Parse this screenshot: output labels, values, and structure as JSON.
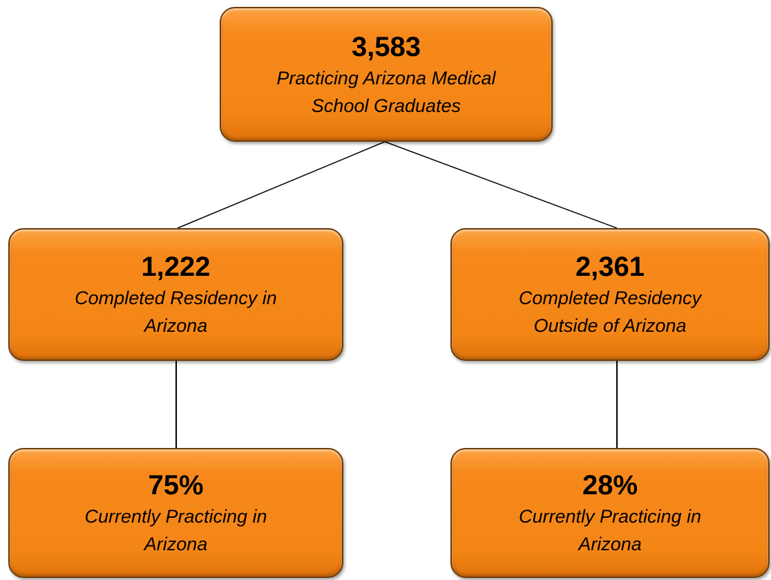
{
  "nodes": [
    {
      "value": "3,583",
      "label": [
        "Practicing Arizona Medical",
        "School Graduates"
      ]
    },
    {
      "value": "1,222",
      "label": [
        "Completed Residency in",
        "Arizona"
      ]
    },
    {
      "value": "2,361",
      "label": [
        "Completed Residency",
        "Outside of Arizona"
      ]
    },
    {
      "value": "75%",
      "label": [
        "Currently Practicing in",
        "Arizona"
      ]
    },
    {
      "value": "28%",
      "label": [
        "Currently Practicing in",
        "Arizona"
      ]
    }
  ]
}
